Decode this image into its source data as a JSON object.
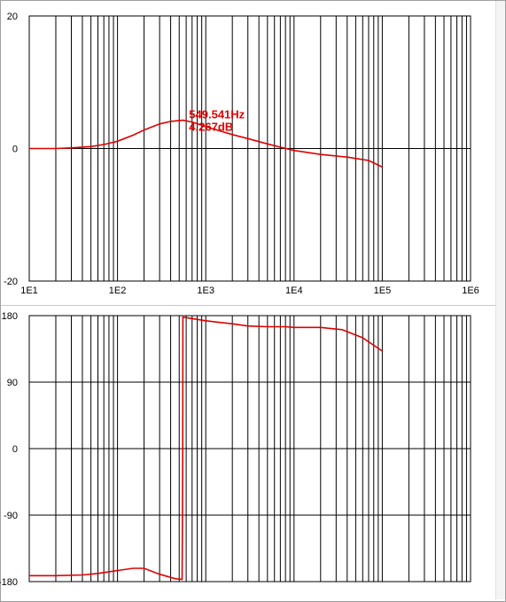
{
  "chart_data": [
    {
      "type": "line",
      "title": "",
      "xlabel": "",
      "ylabel": "",
      "xscale": "log",
      "xlim": [
        10,
        1000000
      ],
      "ylim": [
        -20,
        20
      ],
      "grid": true,
      "x_tick_labels": [
        "1E1",
        "1E2",
        "1E3",
        "1E4",
        "1E5",
        "1E6"
      ],
      "y_tick_labels": [
        "20",
        "0",
        "-20"
      ],
      "y_ticks": [
        20,
        0,
        -20
      ],
      "series": [
        {
          "color": "#e00000",
          "points": [
            [
              10,
              0
            ],
            [
              20,
              0
            ],
            [
              30,
              0.1
            ],
            [
              50,
              0.3
            ],
            [
              70,
              0.6
            ],
            [
              100,
              1.1
            ],
            [
              150,
              2.0
            ],
            [
              200,
              2.8
            ],
            [
              300,
              3.7
            ],
            [
              400,
              4.1
            ],
            [
              549.541,
              4.267
            ],
            [
              700,
              4.0
            ],
            [
              1000,
              3.3
            ],
            [
              1500,
              2.6
            ],
            [
              2000,
              2.1
            ],
            [
              3000,
              1.5
            ],
            [
              5000,
              0.7
            ],
            [
              7000,
              0.2
            ],
            [
              10000,
              -0.3
            ],
            [
              20000,
              -0.9
            ],
            [
              40000,
              -1.3
            ],
            [
              70000,
              -1.8
            ],
            [
              100000,
              -2.8
            ]
          ]
        }
      ],
      "annotation": {
        "x": 549.541,
        "y": 4.267,
        "freq_label": "549.541Hz",
        "value_label": "4.267dB"
      }
    },
    {
      "type": "line",
      "title": "",
      "xlabel": "",
      "ylabel": "",
      "xscale": "log",
      "xlim": [
        10,
        1000000
      ],
      "ylim": [
        -180,
        180
      ],
      "grid": true,
      "y_tick_labels": [
        "180",
        "90",
        "0",
        "-90",
        "-180"
      ],
      "y_ticks": [
        180,
        90,
        0,
        -90,
        -180
      ],
      "series": [
        {
          "color": "#e00000",
          "points": [
            [
              10,
              -172
            ],
            [
              20,
              -172
            ],
            [
              40,
              -171
            ],
            [
              60,
              -169
            ],
            [
              100,
              -165
            ],
            [
              150,
              -162
            ],
            [
              200,
              -162
            ],
            [
              300,
              -170
            ],
            [
              450,
              -176
            ],
            [
              540,
              -177
            ],
            [
              545,
              -90
            ],
            [
              548,
              0
            ],
            [
              551,
              178
            ],
            [
              700,
              176
            ],
            [
              1000,
              173
            ],
            [
              2000,
              169
            ],
            [
              3000,
              166
            ],
            [
              5000,
              165
            ],
            [
              8000,
              165
            ],
            [
              10000,
              164
            ],
            [
              20000,
              164
            ],
            [
              35000,
              161
            ],
            [
              60000,
              150
            ],
            [
              100000,
              132
            ]
          ]
        }
      ]
    }
  ]
}
